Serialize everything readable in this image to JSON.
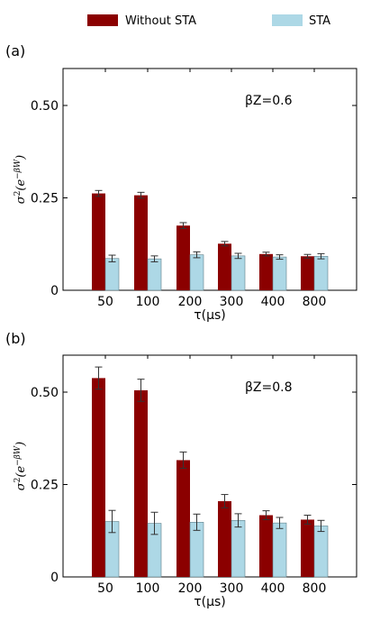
{
  "legend": {
    "position": "top-center",
    "items": [
      {
        "label": "Without STA",
        "color": "#8b0000"
      },
      {
        "label": "STA",
        "color": "#add8e6"
      }
    ]
  },
  "chart_data": [
    {
      "type": "bar",
      "panel_label": "(a)",
      "annotation": "βZ=0.6",
      "xlabel": "τ(μs)",
      "ylabel": "σ²(e^{−βW})",
      "categories": [
        "50",
        "100",
        "200",
        "300",
        "400",
        "800"
      ],
      "ylim": [
        0,
        0.6
      ],
      "yticks": [
        0,
        0.25,
        0.5
      ],
      "ytick_labels": [
        "0",
        "0.25",
        "0.50"
      ],
      "grid": false,
      "series": [
        {
          "name": "Without STA",
          "color": "#8b0000",
          "values": [
            0.262,
            0.257,
            0.175,
            0.126,
            0.098,
            0.092
          ],
          "errors": [
            0.008,
            0.008,
            0.008,
            0.006,
            0.005,
            0.005
          ]
        },
        {
          "name": "STA",
          "color": "#add8e6",
          "values": [
            0.086,
            0.085,
            0.096,
            0.093,
            0.09,
            0.092
          ],
          "errors": [
            0.009,
            0.008,
            0.008,
            0.007,
            0.006,
            0.007
          ]
        }
      ]
    },
    {
      "type": "bar",
      "panel_label": "(b)",
      "annotation": "βZ=0.8",
      "xlabel": "τ(μs)",
      "ylabel": "σ²(e^{−βW})",
      "categories": [
        "50",
        "100",
        "200",
        "300",
        "400",
        "800"
      ],
      "ylim": [
        0,
        0.6
      ],
      "yticks": [
        0,
        0.25,
        0.5
      ],
      "ytick_labels": [
        "0",
        "0.25",
        "0.50"
      ],
      "grid": false,
      "series": [
        {
          "name": "Without STA",
          "color": "#8b0000",
          "values": [
            0.538,
            0.505,
            0.316,
            0.205,
            0.167,
            0.155
          ],
          "errors": [
            0.03,
            0.03,
            0.022,
            0.018,
            0.012,
            0.012
          ]
        },
        {
          "name": "STA",
          "color": "#add8e6",
          "values": [
            0.15,
            0.145,
            0.148,
            0.153,
            0.146,
            0.138
          ],
          "errors": [
            0.03,
            0.03,
            0.022,
            0.018,
            0.015,
            0.015
          ]
        }
      ]
    }
  ]
}
